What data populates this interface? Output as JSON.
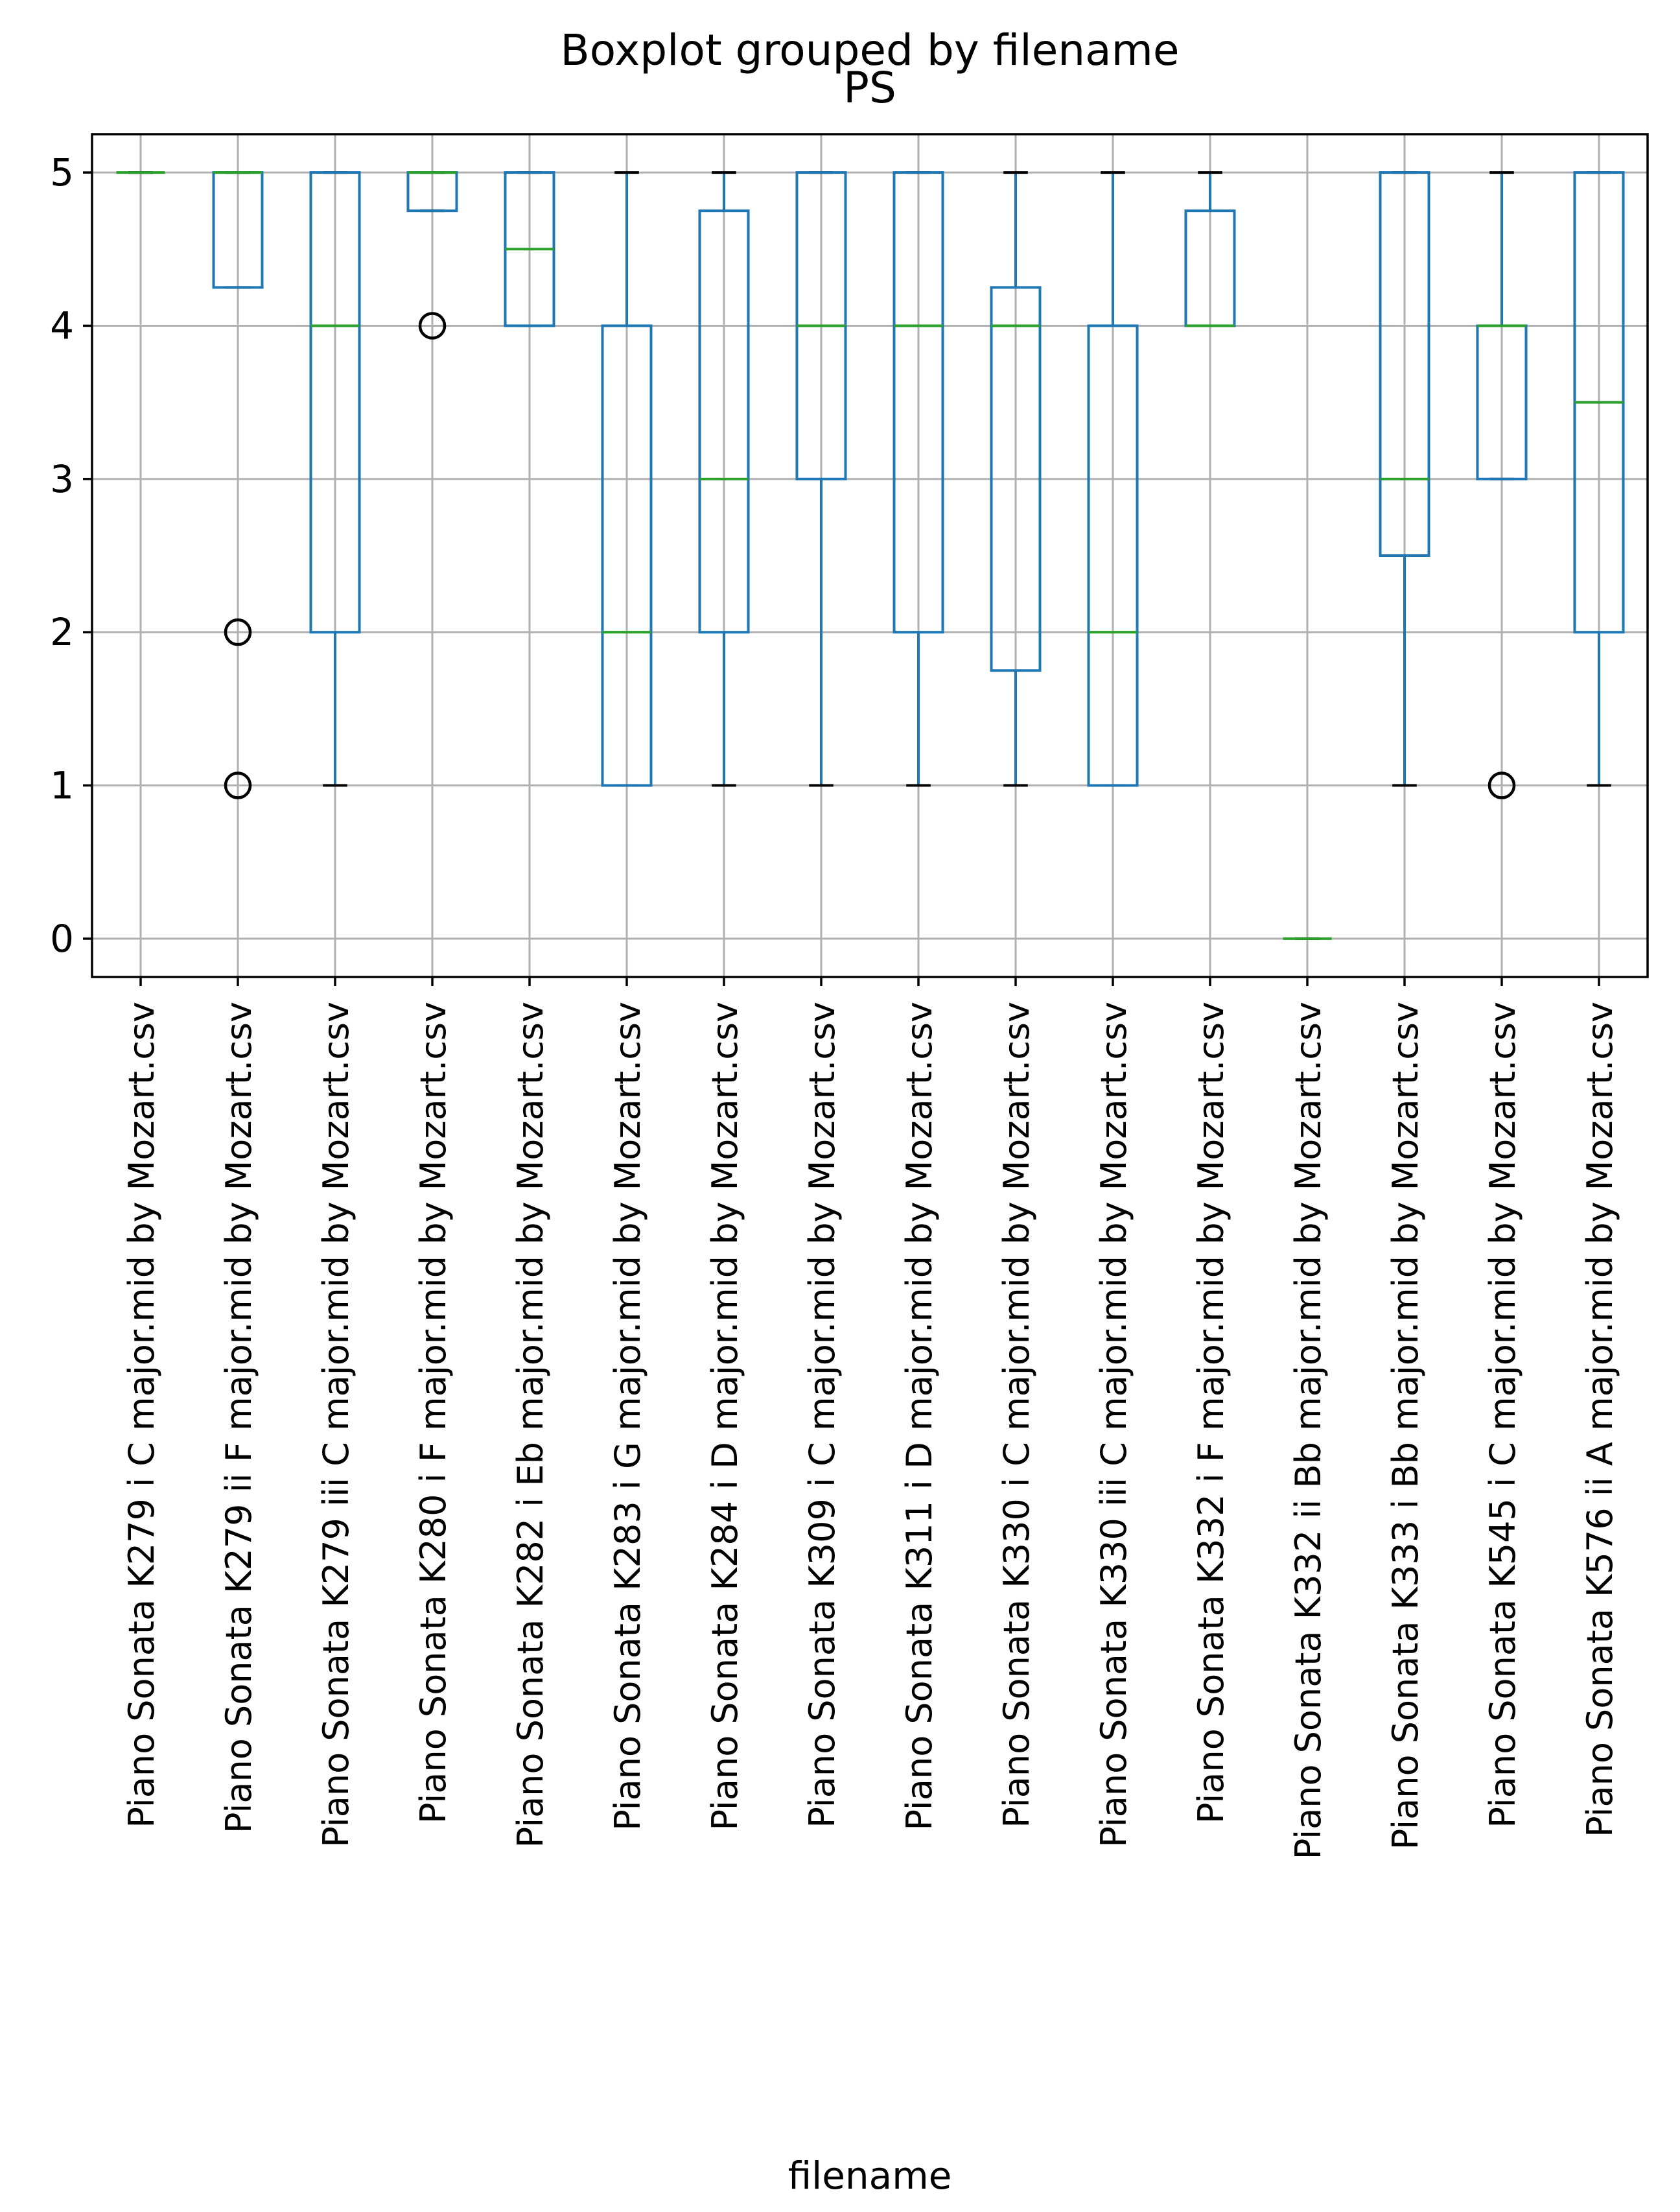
{
  "chart_data": {
    "type": "boxplot",
    "suptitle": "Boxplot grouped by filename",
    "title": "PS",
    "xlabel": "filename",
    "ylabel": "",
    "ylim": [
      -0.25,
      5.25
    ],
    "yticks": [
      0,
      1,
      2,
      3,
      4,
      5
    ],
    "grid": true,
    "colors": {
      "box": "#1f77b4",
      "median": "#2ca02c",
      "whisker_cap": "#000000",
      "grid": "#b0b0b0",
      "outlier": "#000000"
    },
    "categories": [
      "Piano Sonata K279 i C major.mid by Mozart.csv",
      "Piano Sonata K279 ii F major.mid by Mozart.csv",
      "Piano Sonata K279 iii C major.mid by Mozart.csv",
      "Piano Sonata K280 i F major.mid by Mozart.csv",
      "Piano Sonata K282 i Eb major.mid by Mozart.csv",
      "Piano Sonata K283 i G major.mid by Mozart.csv",
      "Piano Sonata K284 i D major.mid by Mozart.csv",
      "Piano Sonata K309 i C major.mid by Mozart.csv",
      "Piano Sonata K311 i D major.mid by Mozart.csv",
      "Piano Sonata K330 i C major.mid by Mozart.csv",
      "Piano Sonata K330 iii C major.mid by Mozart.csv",
      "Piano Sonata K332 i F major.mid by Mozart.csv",
      "Piano Sonata K332 ii Bb major.mid by Mozart.csv",
      "Piano Sonata K333 i Bb major.mid by Mozart.csv",
      "Piano Sonata K545 i C major.mid by Mozart.csv",
      "Piano Sonata K576 ii A major.mid by Mozart.csv"
    ],
    "boxes": [
      {
        "whislo": 5,
        "q1": 5,
        "med": 5,
        "q3": 5,
        "whishi": 5,
        "fliers": []
      },
      {
        "whislo": 4.25,
        "q1": 4.25,
        "med": 5,
        "q3": 5,
        "whishi": 5,
        "fliers": [
          2,
          1
        ]
      },
      {
        "whislo": 1,
        "q1": 2,
        "med": 4,
        "q3": 5,
        "whishi": 5,
        "fliers": []
      },
      {
        "whislo": 4.75,
        "q1": 4.75,
        "med": 5,
        "q3": 5,
        "whishi": 5,
        "fliers": [
          4
        ]
      },
      {
        "whislo": 4,
        "q1": 4,
        "med": 4.5,
        "q3": 5,
        "whishi": 5,
        "fliers": []
      },
      {
        "whislo": 1,
        "q1": 1,
        "med": 2,
        "q3": 4,
        "whishi": 5,
        "fliers": []
      },
      {
        "whislo": 1,
        "q1": 2,
        "med": 3,
        "q3": 4.75,
        "whishi": 5,
        "fliers": []
      },
      {
        "whislo": 1,
        "q1": 3,
        "med": 4,
        "q3": 5,
        "whishi": 5,
        "fliers": []
      },
      {
        "whislo": 1,
        "q1": 2,
        "med": 4,
        "q3": 5,
        "whishi": 5,
        "fliers": []
      },
      {
        "whislo": 1,
        "q1": 1.75,
        "med": 4,
        "q3": 4.25,
        "whishi": 5,
        "fliers": []
      },
      {
        "whislo": 1,
        "q1": 1,
        "med": 2,
        "q3": 4,
        "whishi": 5,
        "fliers": []
      },
      {
        "whislo": 4,
        "q1": 4,
        "med": 4,
        "q3": 4.75,
        "whishi": 5,
        "fliers": []
      },
      {
        "whislo": 0,
        "q1": 0,
        "med": 0,
        "q3": 0,
        "whishi": 0,
        "fliers": []
      },
      {
        "whislo": 1,
        "q1": 2.5,
        "med": 3,
        "q3": 5,
        "whishi": 5,
        "fliers": []
      },
      {
        "whislo": 3,
        "q1": 3,
        "med": 4,
        "q3": 4,
        "whishi": 5,
        "fliers": [
          1
        ]
      },
      {
        "whislo": 1,
        "q1": 2,
        "med": 3.5,
        "q3": 5,
        "whishi": 5,
        "fliers": []
      }
    ]
  }
}
